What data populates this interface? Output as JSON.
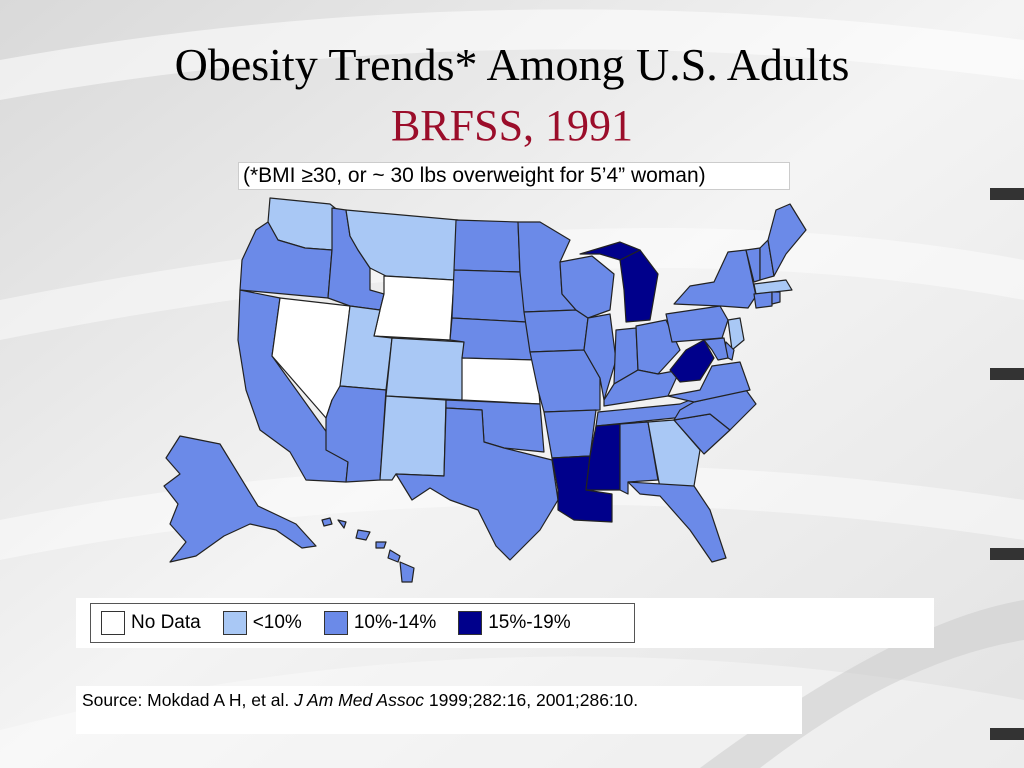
{
  "title": {
    "line1": "Obesity Trends* Among U.S. Adults",
    "line2": "BRFSS, 1991",
    "line2_color": "#9b0d2a"
  },
  "subtitle": "(*BMI ≥30, or ~ 30 lbs overweight for 5’4” woman)",
  "legend": [
    {
      "label": "No Data",
      "color": "#ffffff"
    },
    {
      "label": "<10%",
      "color": "#a9c8f5"
    },
    {
      "label": "10%-14%",
      "color": "#6b8ae8"
    },
    {
      "label": "15%-19%",
      "color": "#00008b"
    }
  ],
  "source": {
    "prefix": "Source: Mokdad A H, et al. ",
    "journal": "J Am Med Assoc",
    "suffix": " 1999;282:16, 2001;286:10."
  },
  "map_data": {
    "year": "1991",
    "states": {
      "WA": "<10%",
      "OR": "10%-14%",
      "CA": "10%-14%",
      "NV": "No Data",
      "ID": "10%-14%",
      "MT": "<10%",
      "WY": "No Data",
      "UT": "<10%",
      "CO": "<10%",
      "AZ": "10%-14%",
      "NM": "<10%",
      "ND": "10%-14%",
      "SD": "10%-14%",
      "NE": "10%-14%",
      "KS": "No Data",
      "OK": "10%-14%",
      "TX": "10%-14%",
      "MN": "10%-14%",
      "IA": "10%-14%",
      "MO": "10%-14%",
      "AR": "10%-14%",
      "LA": "15%-19%",
      "WI": "10%-14%",
      "IL": "10%-14%",
      "MI": "15%-19%",
      "IN": "10%-14%",
      "OH": "10%-14%",
      "KY": "10%-14%",
      "TN": "10%-14%",
      "MS": "15%-19%",
      "AL": "10%-14%",
      "GA": "<10%",
      "FL": "10%-14%",
      "SC": "10%-14%",
      "NC": "10%-14%",
      "VA": "10%-14%",
      "WV": "15%-19%",
      "PA": "10%-14%",
      "NY": "10%-14%",
      "VT": "10%-14%",
      "NH": "10%-14%",
      "ME": "10%-14%",
      "MA": "<10%",
      "RI": "10%-14%",
      "CT": "10%-14%",
      "NJ": "<10%",
      "DE": "10%-14%",
      "MD": "10%-14%",
      "AK": "10%-14%",
      "HI": "10%-14%"
    }
  }
}
